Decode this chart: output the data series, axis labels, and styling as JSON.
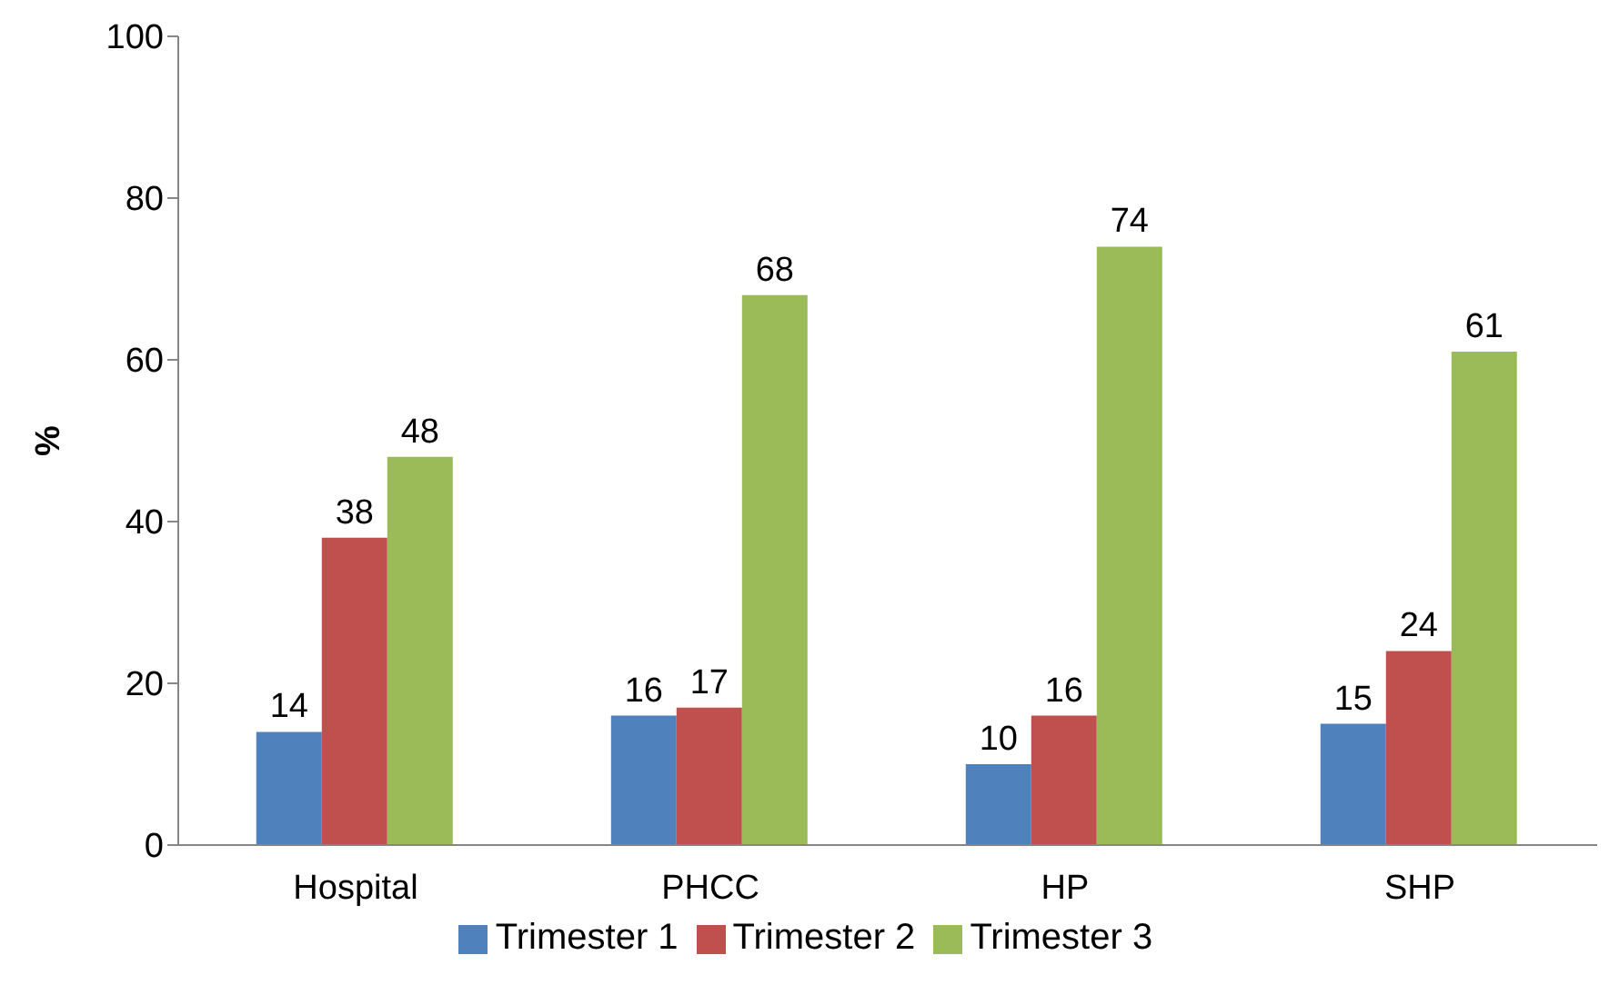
{
  "chart_data": {
    "type": "bar",
    "ylabel": "%",
    "categories": [
      "Hospital",
      "PHCC",
      "HP",
      "SHP"
    ],
    "series": [
      {
        "name": "Trimester 1",
        "color": "#4f81bd",
        "values": [
          14,
          16,
          10,
          15
        ]
      },
      {
        "name": "Trimester 2",
        "color": "#c0504d",
        "values": [
          38,
          17,
          16,
          24
        ]
      },
      {
        "name": "Trimester 3",
        "color": "#9bbb59",
        "values": [
          48,
          68,
          74,
          61
        ]
      }
    ],
    "ylim": [
      0,
      100
    ],
    "yticks": [
      0,
      20,
      40,
      60,
      80,
      100
    ],
    "data_labels": true,
    "legend": "bottom"
  }
}
